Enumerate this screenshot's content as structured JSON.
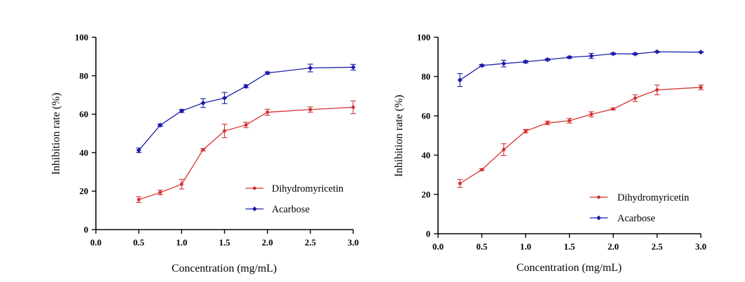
{
  "colors": {
    "dihydromyricetin": "#d42f2f",
    "acarbose": "#1c1ca8"
  },
  "chart_data": [
    {
      "type": "line",
      "title": "",
      "xlabel": "Concentration (mg/mL)",
      "ylabel": "Inhibition rate (%)",
      "xlim": [
        0,
        3
      ],
      "ylim": [
        0,
        100
      ],
      "xticks": [
        "0.0",
        "0.5",
        "1.0",
        "1.5",
        "2.0",
        "2.5",
        "3.0"
      ],
      "yticks": [
        "0",
        "20",
        "40",
        "60",
        "80",
        "100"
      ],
      "legend_position": "bottom-right",
      "series": [
        {
          "name": "Dihydromyricetin",
          "color": "#d42f2f",
          "marker": "circle",
          "x": [
            0.5,
            0.75,
            1.0,
            1.25,
            1.5,
            1.75,
            2.0,
            2.5,
            3.0
          ],
          "y": [
            15.6,
            19.3,
            23.6,
            41.5,
            51.3,
            54.4,
            61.0,
            62.4,
            63.6
          ],
          "err": [
            1.5,
            1.2,
            2.5,
            0.6,
            3.5,
            1.4,
            1.6,
            1.4,
            3.3
          ]
        },
        {
          "name": "Acarbose",
          "color": "#1c1ca8",
          "marker": "diamond",
          "x": [
            0.5,
            0.75,
            1.0,
            1.25,
            1.5,
            1.75,
            2.0,
            2.5,
            3.0
          ],
          "y": [
            41.2,
            54.3,
            61.7,
            65.8,
            68.4,
            74.5,
            81.4,
            84.0,
            84.4
          ],
          "err": [
            1.2,
            0.6,
            0.8,
            2.3,
            2.9,
            0.8,
            0.6,
            2.0,
            1.5
          ]
        }
      ]
    },
    {
      "type": "line",
      "title": "",
      "xlabel": "Concentration (mg/mL)",
      "ylabel": "Inhibition rate (%)",
      "xlim": [
        0,
        3
      ],
      "ylim": [
        0,
        100
      ],
      "xticks": [
        "0.0",
        "0.5",
        "1.0",
        "1.5",
        "2.0",
        "2.5",
        "3.0"
      ],
      "yticks": [
        "0",
        "20",
        "40",
        "60",
        "80",
        "100"
      ],
      "legend_position": "bottom-right",
      "series": [
        {
          "name": "Dihydromyricetin",
          "color": "#d42f2f",
          "marker": "circle",
          "x": [
            0.25,
            0.5,
            0.75,
            1.0,
            1.25,
            1.5,
            1.75,
            2.0,
            2.25,
            2.5,
            3.0
          ],
          "y": [
            25.6,
            32.6,
            42.8,
            52.2,
            56.4,
            57.5,
            60.8,
            63.5,
            69.0,
            73.2,
            74.5
          ],
          "err": [
            2.0,
            0.5,
            3.0,
            0.9,
            0.9,
            1.2,
            1.3,
            0.5,
            1.7,
            2.5,
            1.2
          ]
        },
        {
          "name": "Acarbose",
          "color": "#1c1ca8",
          "marker": "diamond",
          "x": [
            0.25,
            0.5,
            0.75,
            1.0,
            1.25,
            1.5,
            1.75,
            2.0,
            2.25,
            2.5,
            3.0
          ],
          "y": [
            78.2,
            85.6,
            86.6,
            87.5,
            88.6,
            89.8,
            90.5,
            91.6,
            91.5,
            92.6,
            92.4
          ],
          "err": [
            3.3,
            0.5,
            1.7,
            0.6,
            0.5,
            0.5,
            1.3,
            0.4,
            0.4,
            0.3,
            0.2
          ]
        }
      ]
    }
  ]
}
